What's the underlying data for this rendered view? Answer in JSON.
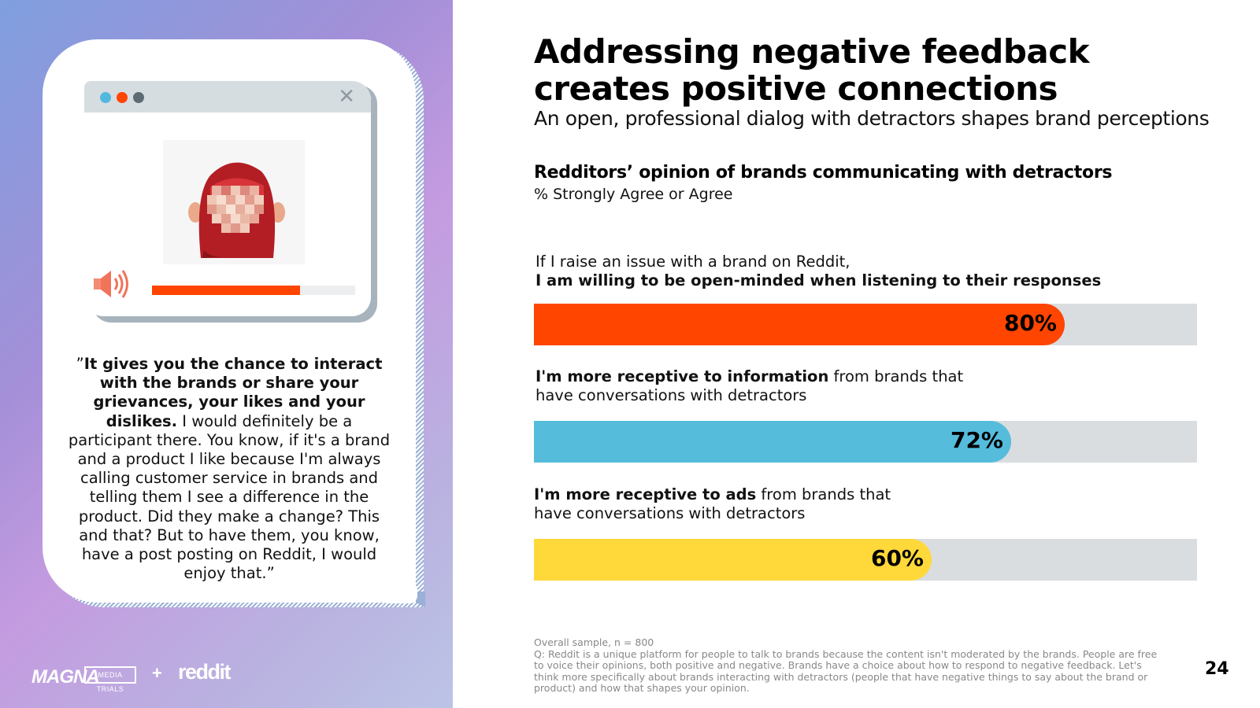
{
  "title_line1": "Addressing negative feedback",
  "title_line2": "creates positive connections",
  "subtitle": "An open, professional dialog with detractors shapes brand perceptions",
  "chart_data": {
    "type": "bar",
    "orientation": "horizontal",
    "title": "Redditors’ opinion of brands communicating with detractors",
    "subtitle": "% Strongly Agree or Agree",
    "xlim": [
      0,
      100
    ],
    "bars": [
      {
        "label_plain_before": "If I raise an issue with a brand on Reddit,",
        "label_bold": "I am willing to be open-minded when listening to their responses",
        "label_plain_after": "",
        "value": 80,
        "display": "80%",
        "color": "#ff4500"
      },
      {
        "label_plain_before": "",
        "label_bold": "I'm more receptive to information",
        "label_plain_after": " from brands that",
        "label_line2": "have conversations with detractors",
        "value": 72,
        "display": "72%",
        "color": "#55bcdc"
      },
      {
        "label_plain_before": "",
        "label_bold": "I'm more receptive to ads",
        "label_plain_after": " from brands that",
        "label_line2": "have conversations with detractors",
        "value": 60,
        "display": "60%",
        "color": "#ffd93a"
      }
    ]
  },
  "quote": {
    "open_mark": "”",
    "bold": "It gives you the chance to interact with the brands or share your grievances, your likes and your dislikes.",
    "rest": " I would definitely be a participant there. You know, if it's a brand and a product I like because I'm always calling customer service in brands and telling them I see a difference in the product. Did they make a change? This and that? But to have them, you know, have a post posting on Reddit, I would enjoy that.”"
  },
  "window": {
    "close_glyph": "✕",
    "audio_progress": 0.73
  },
  "logos": {
    "magna": "MAGNA",
    "tag": "MEDIA TRIALS",
    "plus": "+",
    "reddit": "reddit"
  },
  "footnote": {
    "sample": "Overall sample, n = 800",
    "question": "Q: Reddit is a unique platform for people to talk to brands because the content isn't moderated by the brands.  People are free to voice their opinions, both positive and negative.  Brands have a choice about how to respond to negative feedback. Let's think more specifically about brands interacting with detractors (people that have negative things to say about the brand or product) and how that shapes your opinion."
  },
  "page_number": "24",
  "colors": {
    "accent_orange": "#ff4500",
    "accent_blue": "#55bcdc",
    "accent_yellow": "#ffd93a",
    "track": "#d9dde0"
  }
}
